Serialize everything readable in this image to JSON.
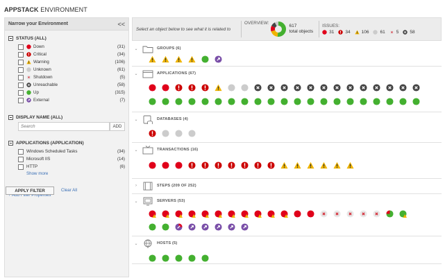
{
  "page": {
    "title_bold": "APPSTACK",
    "title_rest": " ENVIRONMENT"
  },
  "sidebar": {
    "heading": "Narrow your Environment",
    "collapse_glyph": "<<",
    "status_title": "STATUS (ALL)",
    "statuses": [
      {
        "label": "Down",
        "count": "(31)",
        "icon": "down"
      },
      {
        "label": "Critical",
        "count": "(34)",
        "icon": "critical"
      },
      {
        "label": "Warning",
        "count": "(106)",
        "icon": "warning"
      },
      {
        "label": "Unknown",
        "count": "(61)",
        "icon": "unknown"
      },
      {
        "label": "Shutdown",
        "count": "(5)",
        "icon": "shutdown"
      },
      {
        "label": "Unreachable",
        "count": "(58)",
        "icon": "unreachable"
      },
      {
        "label": "Up",
        "count": "(315)",
        "icon": "up"
      },
      {
        "label": "External",
        "count": "(7)",
        "icon": "external"
      }
    ],
    "display_name_title": "DISPLAY NAME (ALL)",
    "search_placeholder": "Search",
    "add_label": "ADD",
    "apps_title": "APPLICATIONS (APPLICATION)",
    "apps": [
      {
        "label": "Windows Scheduled Tasks",
        "count": "(34)"
      },
      {
        "label": "Microsoft IIS",
        "count": "(14)"
      },
      {
        "label": "HTTP",
        "count": "(6)"
      }
    ],
    "show_more": "Show more",
    "add_filter": "+ Add Filter Properties",
    "apply": "APPLY FILTER",
    "clear": "Clear All"
  },
  "topbar": {
    "hint": "Select an object below to see what it is related to",
    "overview_label": "OVERVIEW:",
    "total_count": "617",
    "total_label": "total objects",
    "issues_label": "ISSUES:",
    "issues": [
      {
        "icon": "down",
        "value": "31"
      },
      {
        "icon": "critical",
        "value": "34"
      },
      {
        "icon": "warning",
        "value": "106"
      },
      {
        "icon": "unknown",
        "value": "61"
      },
      {
        "icon": "shutdown",
        "value": "5"
      },
      {
        "icon": "unreachable",
        "value": "58"
      }
    ]
  },
  "colors": {
    "down": "#e0001a",
    "critical": "#cc0000",
    "warning": "#f0b400",
    "unknown": "#cccccc",
    "up": "#44b030",
    "external": "#7a4fa8",
    "unreachable": "#444444"
  },
  "sections": [
    {
      "label": "GROUPS (6)",
      "icon": "folder-icon",
      "rows": [
        [
          "warning",
          "warning",
          "warning",
          "warning",
          "up",
          "external"
        ]
      ]
    },
    {
      "label": "APPLICATIONS (67)",
      "icon": "application-window-icon",
      "rows": [
        [
          "down",
          "down",
          "critical",
          "critical",
          "critical",
          "warning",
          "unknown",
          "unknown",
          "unreachable",
          "unreachable",
          "unreachable",
          "unreachable",
          "unreachable",
          "unreachable",
          "unreachable",
          "unreachable",
          "unreachable",
          "unreachable",
          "unreachable",
          "unreachable",
          "unreachable"
        ],
        [
          "up",
          "up",
          "up",
          "up",
          "up",
          "up",
          "up",
          "up",
          "up",
          "up",
          "up",
          "up",
          "up",
          "up",
          "up",
          "up",
          "up",
          "up",
          "up",
          "up",
          "up"
        ]
      ]
    },
    {
      "label": "DATABASES (4)",
      "icon": "database-icon",
      "rows": [
        [
          "critical",
          "unknown",
          "unknown",
          "unknown"
        ]
      ]
    },
    {
      "label": "TRANSACTIONS (16)",
      "icon": "transaction-monitor-icon",
      "rows": [
        [
          "down",
          "down",
          "down",
          "critical",
          "critical",
          "critical",
          "critical",
          "critical",
          "critical",
          "critical",
          "warning",
          "warning",
          "warning",
          "warning",
          "warning",
          "warning"
        ]
      ]
    },
    {
      "label": "STEPS (209 OF 252)",
      "icon": "film-steps-icon",
      "rows": []
    },
    {
      "label": "SERVERS (53)",
      "icon": "server-icon",
      "rows": [
        [
          "down-warn",
          "down-warn",
          "down-warn",
          "down-warn",
          "down-warn",
          "down-warn",
          "down-warn",
          "down-warn",
          "down-warn",
          "down-warn",
          "down-warn",
          "down",
          "down",
          "shutdown",
          "shutdown",
          "shutdown",
          "shutdown",
          "shutdown",
          "down-up",
          "up-warn"
        ],
        [
          "up",
          "up",
          "mixed",
          "external",
          "external",
          "external",
          "external",
          "external"
        ]
      ]
    },
    {
      "label": "HOSTS (5)",
      "icon": "host-globe-icon",
      "rows": [
        [
          "up",
          "up",
          "up",
          "up",
          "up"
        ]
      ]
    }
  ]
}
